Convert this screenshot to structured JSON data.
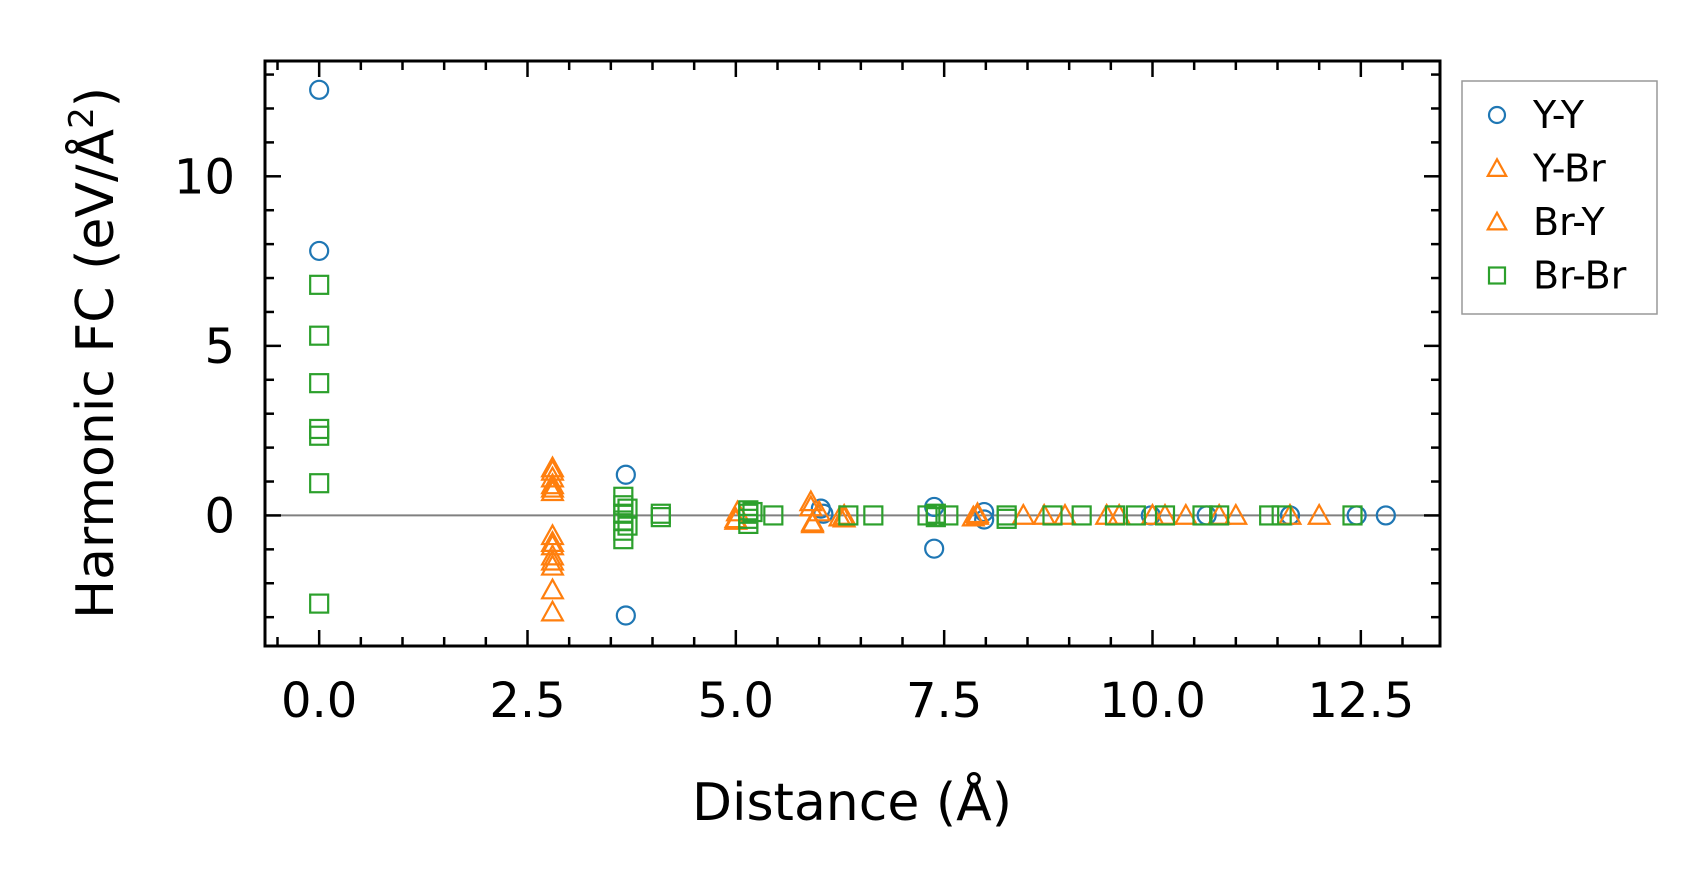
{
  "chart_data": {
    "type": "scatter",
    "title": "",
    "xlabel": "Distance (Å)",
    "ylabel": "Harmonic FC (eV/Å²)",
    "ylabel_main": "Harmonic FC (eV/Å",
    "ylabel_sup": "2",
    "ylabel_close": ")",
    "xlim": [
      -0.65,
      13.45
    ],
    "ylim": [
      -3.85,
      13.4
    ],
    "xticks": [
      0.0,
      2.5,
      5.0,
      7.5,
      10.0,
      12.5
    ],
    "xtick_labels": [
      "0.0",
      "2.5",
      "5.0",
      "7.5",
      "10.0",
      "12.5"
    ],
    "yticks": [
      0,
      5,
      10
    ],
    "ytick_labels": [
      "0",
      "5",
      "10"
    ],
    "zero_line": true,
    "legend_position": "outside right, top",
    "series": [
      {
        "name": "Y-Y",
        "marker": "circle",
        "color": "#1f77b4",
        "points": [
          [
            0,
            12.55
          ],
          [
            0,
            7.8
          ],
          [
            3.68,
            1.2
          ],
          [
            3.68,
            -2.95
          ],
          [
            6.02,
            0.2
          ],
          [
            6.05,
            0.05
          ],
          [
            7.38,
            0.25
          ],
          [
            7.38,
            -0.98
          ],
          [
            7.98,
            0.1
          ],
          [
            7.98,
            -0.12
          ],
          [
            9.98,
            0.0
          ],
          [
            10.65,
            0.0
          ],
          [
            11.65,
            0.0
          ],
          [
            12.45,
            0.0
          ],
          [
            12.8,
            0.0
          ]
        ]
      },
      {
        "name": "Y-Br",
        "marker": "triangle",
        "color": "#ff7f0e",
        "points": [
          [
            2.8,
            1.4
          ],
          [
            2.8,
            1.1
          ],
          [
            2.8,
            0.9
          ],
          [
            2.8,
            0.7
          ],
          [
            2.8,
            -0.6
          ],
          [
            2.8,
            -0.9
          ],
          [
            2.8,
            -1.2
          ],
          [
            2.8,
            -1.5
          ],
          [
            2.8,
            -2.2
          ],
          [
            2.8,
            -2.85
          ],
          [
            5.0,
            -0.15
          ],
          [
            5.02,
            0.1
          ],
          [
            5.9,
            0.4
          ],
          [
            5.92,
            -0.2
          ],
          [
            6.0,
            0.1
          ],
          [
            6.25,
            -0.05
          ],
          [
            6.3,
            0.0
          ],
          [
            7.85,
            -0.05
          ],
          [
            7.9,
            0.05
          ],
          [
            8.45,
            0.0
          ],
          [
            8.95,
            0.0
          ],
          [
            9.45,
            0.0
          ],
          [
            10.15,
            0.0
          ],
          [
            10.4,
            0.0
          ],
          [
            10.8,
            0.0
          ],
          [
            11.65,
            0.0
          ],
          [
            12.0,
            0.0
          ]
        ]
      },
      {
        "name": "Br-Y",
        "marker": "triangle",
        "color": "#ff7f0e",
        "points": [
          [
            2.8,
            1.3
          ],
          [
            2.8,
            0.8
          ],
          [
            2.8,
            -0.8
          ],
          [
            2.8,
            -1.35
          ],
          [
            5.0,
            -0.1
          ],
          [
            5.9,
            0.25
          ],
          [
            5.92,
            -0.25
          ],
          [
            6.3,
            -0.08
          ],
          [
            7.9,
            0.0
          ],
          [
            8.7,
            0.0
          ],
          [
            9.6,
            0.0
          ],
          [
            10.0,
            0.0
          ],
          [
            11.0,
            0.0
          ]
        ]
      },
      {
        "name": "Br-Br",
        "marker": "square",
        "color": "#2ca02c",
        "points": [
          [
            0,
            6.8
          ],
          [
            0,
            5.3
          ],
          [
            0,
            3.9
          ],
          [
            0,
            2.55
          ],
          [
            0,
            2.35
          ],
          [
            0,
            0.95
          ],
          [
            0,
            -2.6
          ],
          [
            3.65,
            0.55
          ],
          [
            3.65,
            0.3
          ],
          [
            3.65,
            0.05
          ],
          [
            3.65,
            -0.15
          ],
          [
            3.65,
            -0.45
          ],
          [
            3.65,
            -0.7
          ],
          [
            3.7,
            0.2
          ],
          [
            3.7,
            -0.3
          ],
          [
            4.1,
            0.05
          ],
          [
            4.1,
            -0.05
          ],
          [
            5.15,
            0.15
          ],
          [
            5.15,
            0.05
          ],
          [
            5.15,
            -0.1
          ],
          [
            5.15,
            -0.25
          ],
          [
            5.2,
            0.1
          ],
          [
            5.45,
            0.0
          ],
          [
            6.35,
            0.0
          ],
          [
            6.65,
            0.0
          ],
          [
            7.3,
            0.0
          ],
          [
            7.4,
            0.05
          ],
          [
            7.4,
            -0.05
          ],
          [
            7.55,
            0.0
          ],
          [
            8.25,
            0.0
          ],
          [
            8.25,
            -0.1
          ],
          [
            8.8,
            0.0
          ],
          [
            9.15,
            0.0
          ],
          [
            9.55,
            0.0
          ],
          [
            9.8,
            0.0
          ],
          [
            10.15,
            0.0
          ],
          [
            10.6,
            0.0
          ],
          [
            10.8,
            0.0
          ],
          [
            11.4,
            0.0
          ],
          [
            11.55,
            0.0
          ],
          [
            12.4,
            0.0
          ]
        ]
      }
    ]
  }
}
